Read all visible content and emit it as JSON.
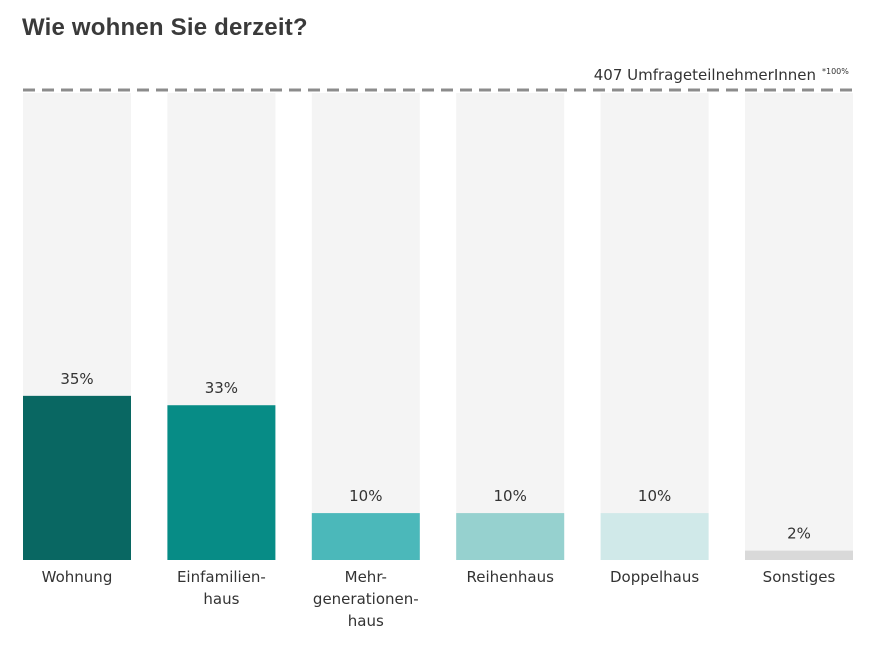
{
  "chart_data": {
    "type": "bar",
    "title": "Wie wohnen Sie derzeit?",
    "total_label": "407 UmfrageteilnehmerInnen",
    "total_note": "*100%",
    "categories": [
      [
        "Wohnung"
      ],
      [
        "Einfamilien-",
        "haus"
      ],
      [
        "Mehr-",
        "generationen-",
        "haus"
      ],
      [
        "Reihenhaus"
      ],
      [
        "Doppelhaus"
      ],
      [
        "Sonstiges"
      ]
    ],
    "values": [
      35,
      33,
      10,
      10,
      10,
      2
    ],
    "value_labels": [
      "35%",
      "33%",
      "10%",
      "10%",
      "10%",
      "2%"
    ],
    "colors": [
      "#096762",
      "#078c86",
      "#4bb8ba",
      "#96d1cf",
      "#d0e9e9",
      "#d9d9d9"
    ],
    "background_color": "#f4f4f4",
    "ylim": [
      0,
      100
    ]
  }
}
